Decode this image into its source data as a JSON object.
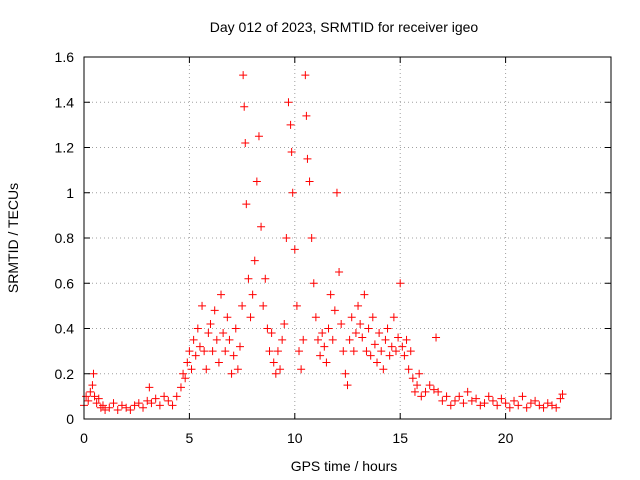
{
  "chart_data": {
    "type": "scatter",
    "title": "Day 012 of 2023, SRMTID for receiver igeo",
    "xlabel": "GPS time / hours",
    "ylabel": "SRMTID / TECUs",
    "xlim": [
      0,
      25
    ],
    "ylim": [
      0,
      1.6
    ],
    "xticks": [
      0,
      5,
      10,
      15,
      20
    ],
    "xtick_labels": [
      "0",
      "5",
      "10",
      "15",
      "20"
    ],
    "yticks": [
      0,
      0.2,
      0.4,
      0.6,
      0.8,
      1.0,
      1.2,
      1.4,
      1.6
    ],
    "ytick_labels": [
      "0",
      "0.2",
      "0.4",
      "0.6",
      "0.8",
      "1",
      "1.2",
      "1.4",
      "1.6"
    ],
    "grid": true,
    "marker": "+",
    "series": [
      {
        "name": "SRMTID",
        "color": "#ff0000",
        "x": [
          0.0,
          0.1,
          0.2,
          0.3,
          0.4,
          0.45,
          0.5,
          0.6,
          0.7,
          0.8,
          0.9,
          1.0,
          1.2,
          1.4,
          1.6,
          1.8,
          2.0,
          2.2,
          2.4,
          2.6,
          2.8,
          3.0,
          3.1,
          3.2,
          3.4,
          3.6,
          3.8,
          4.0,
          4.2,
          4.4,
          4.6,
          4.7,
          4.8,
          4.9,
          5.0,
          5.1,
          5.2,
          5.3,
          5.4,
          5.5,
          5.6,
          5.7,
          5.8,
          5.9,
          6.0,
          6.1,
          6.2,
          6.3,
          6.4,
          6.5,
          6.6,
          6.7,
          6.8,
          6.9,
          7.0,
          7.1,
          7.2,
          7.3,
          7.4,
          7.5,
          7.55,
          7.6,
          7.65,
          7.7,
          7.8,
          7.9,
          8.0,
          8.1,
          8.2,
          8.3,
          8.4,
          8.5,
          8.6,
          8.7,
          8.8,
          8.9,
          9.0,
          9.1,
          9.2,
          9.3,
          9.4,
          9.5,
          9.6,
          9.7,
          9.8,
          9.85,
          9.9,
          10.0,
          10.1,
          10.2,
          10.3,
          10.4,
          10.5,
          10.55,
          10.6,
          10.7,
          10.8,
          10.9,
          11.0,
          11.1,
          11.2,
          11.3,
          11.4,
          11.5,
          11.6,
          11.7,
          11.8,
          11.9,
          12.0,
          12.1,
          12.2,
          12.3,
          12.4,
          12.5,
          12.6,
          12.7,
          12.8,
          12.9,
          13.0,
          13.1,
          13.2,
          13.3,
          13.4,
          13.5,
          13.6,
          13.7,
          13.8,
          13.9,
          14.0,
          14.1,
          14.2,
          14.3,
          14.4,
          14.5,
          14.6,
          14.7,
          14.8,
          14.9,
          15.0,
          15.1,
          15.2,
          15.3,
          15.4,
          15.5,
          15.6,
          15.7,
          15.8,
          15.9,
          16.0,
          16.2,
          16.4,
          16.6,
          16.7,
          16.8,
          17.0,
          17.2,
          17.4,
          17.6,
          17.8,
          18.0,
          18.2,
          18.4,
          18.6,
          18.8,
          19.0,
          19.2,
          19.4,
          19.6,
          19.8,
          20.0,
          20.2,
          20.4,
          20.6,
          20.8,
          21.0,
          21.2,
          21.4,
          21.6,
          21.8,
          22.0,
          22.2,
          22.4,
          22.6,
          22.7
        ],
        "y": [
          0.06,
          0.1,
          0.08,
          0.12,
          0.15,
          0.2,
          0.1,
          0.07,
          0.09,
          0.05,
          0.06,
          0.04,
          0.05,
          0.07,
          0.04,
          0.06,
          0.05,
          0.04,
          0.06,
          0.07,
          0.05,
          0.08,
          0.14,
          0.07,
          0.09,
          0.06,
          0.1,
          0.08,
          0.06,
          0.1,
          0.14,
          0.2,
          0.18,
          0.25,
          0.3,
          0.22,
          0.35,
          0.28,
          0.4,
          0.32,
          0.5,
          0.3,
          0.22,
          0.38,
          0.42,
          0.3,
          0.48,
          0.35,
          0.25,
          0.55,
          0.38,
          0.3,
          0.45,
          0.35,
          0.2,
          0.28,
          0.4,
          0.22,
          0.32,
          0.5,
          1.52,
          1.38,
          1.22,
          0.95,
          0.62,
          0.45,
          0.55,
          0.7,
          1.05,
          1.25,
          0.85,
          0.5,
          0.62,
          0.4,
          0.3,
          0.38,
          0.25,
          0.2,
          0.3,
          0.22,
          0.35,
          0.42,
          0.8,
          1.4,
          1.3,
          1.18,
          1.0,
          0.75,
          0.5,
          0.3,
          0.22,
          0.35,
          1.52,
          1.34,
          1.15,
          1.05,
          0.8,
          0.6,
          0.45,
          0.35,
          0.28,
          0.38,
          0.32,
          0.25,
          0.4,
          0.55,
          0.35,
          0.48,
          1.0,
          0.65,
          0.42,
          0.3,
          0.2,
          0.15,
          0.35,
          0.45,
          0.3,
          0.38,
          0.5,
          0.42,
          0.36,
          0.55,
          0.3,
          0.4,
          0.28,
          0.45,
          0.33,
          0.25,
          0.38,
          0.3,
          0.22,
          0.35,
          0.4,
          0.28,
          0.32,
          0.45,
          0.3,
          0.36,
          0.6,
          0.32,
          0.28,
          0.35,
          0.22,
          0.3,
          0.18,
          0.12,
          0.15,
          0.2,
          0.1,
          0.12,
          0.15,
          0.13,
          0.36,
          0.12,
          0.08,
          0.1,
          0.06,
          0.08,
          0.1,
          0.07,
          0.12,
          0.08,
          0.09,
          0.06,
          0.07,
          0.1,
          0.08,
          0.06,
          0.09,
          0.07,
          0.05,
          0.08,
          0.06,
          0.1,
          0.05,
          0.07,
          0.08,
          0.06,
          0.05,
          0.07,
          0.06,
          0.05,
          0.09,
          0.11
        ]
      }
    ]
  }
}
